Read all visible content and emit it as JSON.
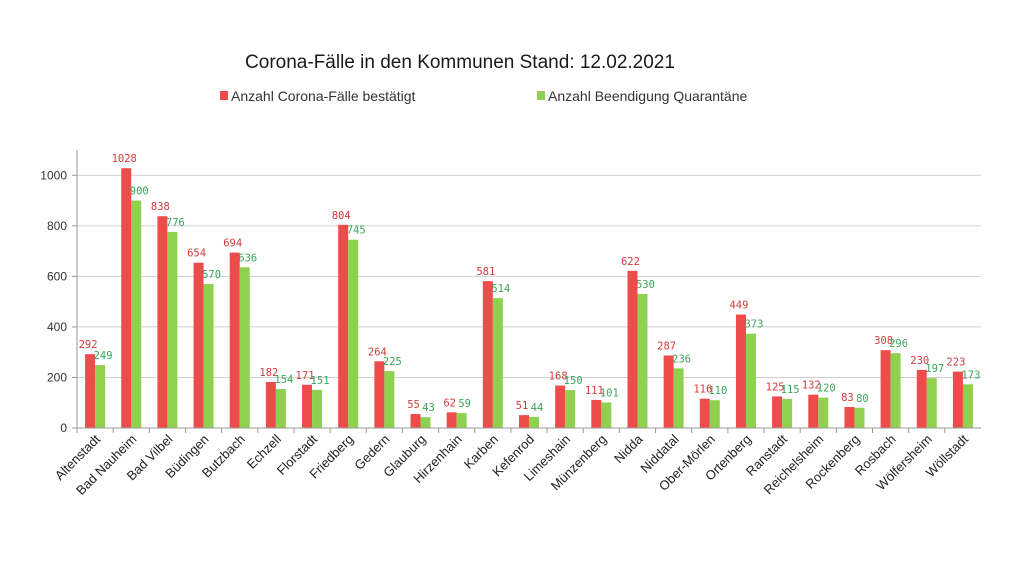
{
  "chart_data": {
    "type": "bar",
    "title": "Corona-Fälle in den Kommunen Stand: 12.02.2021",
    "xlabel": "",
    "ylabel": "",
    "ylim": [
      0,
      1100
    ],
    "yticks": [
      0,
      200,
      400,
      600,
      800,
      1000
    ],
    "grid": true,
    "legend_position": "top",
    "categories": [
      "Altenstadt",
      "Bad Nauheim",
      "Bad Vilbel",
      "Büdingen",
      "Butzbach",
      "Echzell",
      "Florstadt",
      "Friedberg",
      "Gedern",
      "Glauburg",
      "Hirzenhain",
      "Karben",
      "Kefenrod",
      "Limeshain",
      "Münzenberg",
      "Nidda",
      "Niddatal",
      "Ober-Mörlen",
      "Ortenberg",
      "Ranstadt",
      "Reichelsheim",
      "Rockenberg",
      "Rosbach",
      "Wölfersheim",
      "Wöllstadt"
    ],
    "series": [
      {
        "name": "Anzahl Corona-Fälle bestätigt",
        "color": "#ee4b4b",
        "label_color": "#d23c3c",
        "values": [
          292,
          1028,
          838,
          654,
          694,
          182,
          171,
          804,
          264,
          55,
          62,
          581,
          51,
          168,
          111,
          622,
          287,
          116,
          449,
          125,
          132,
          83,
          308,
          230,
          223
        ]
      },
      {
        "name": "Anzahl Beendigung Quarantäne",
        "color": "#8fd14f",
        "label_color": "#3aa55a",
        "values": [
          249,
          900,
          776,
          570,
          636,
          154,
          151,
          745,
          225,
          43,
          59,
          514,
          44,
          150,
          101,
          530,
          236,
          110,
          373,
          115,
          120,
          80,
          296,
          197,
          173
        ]
      }
    ]
  }
}
